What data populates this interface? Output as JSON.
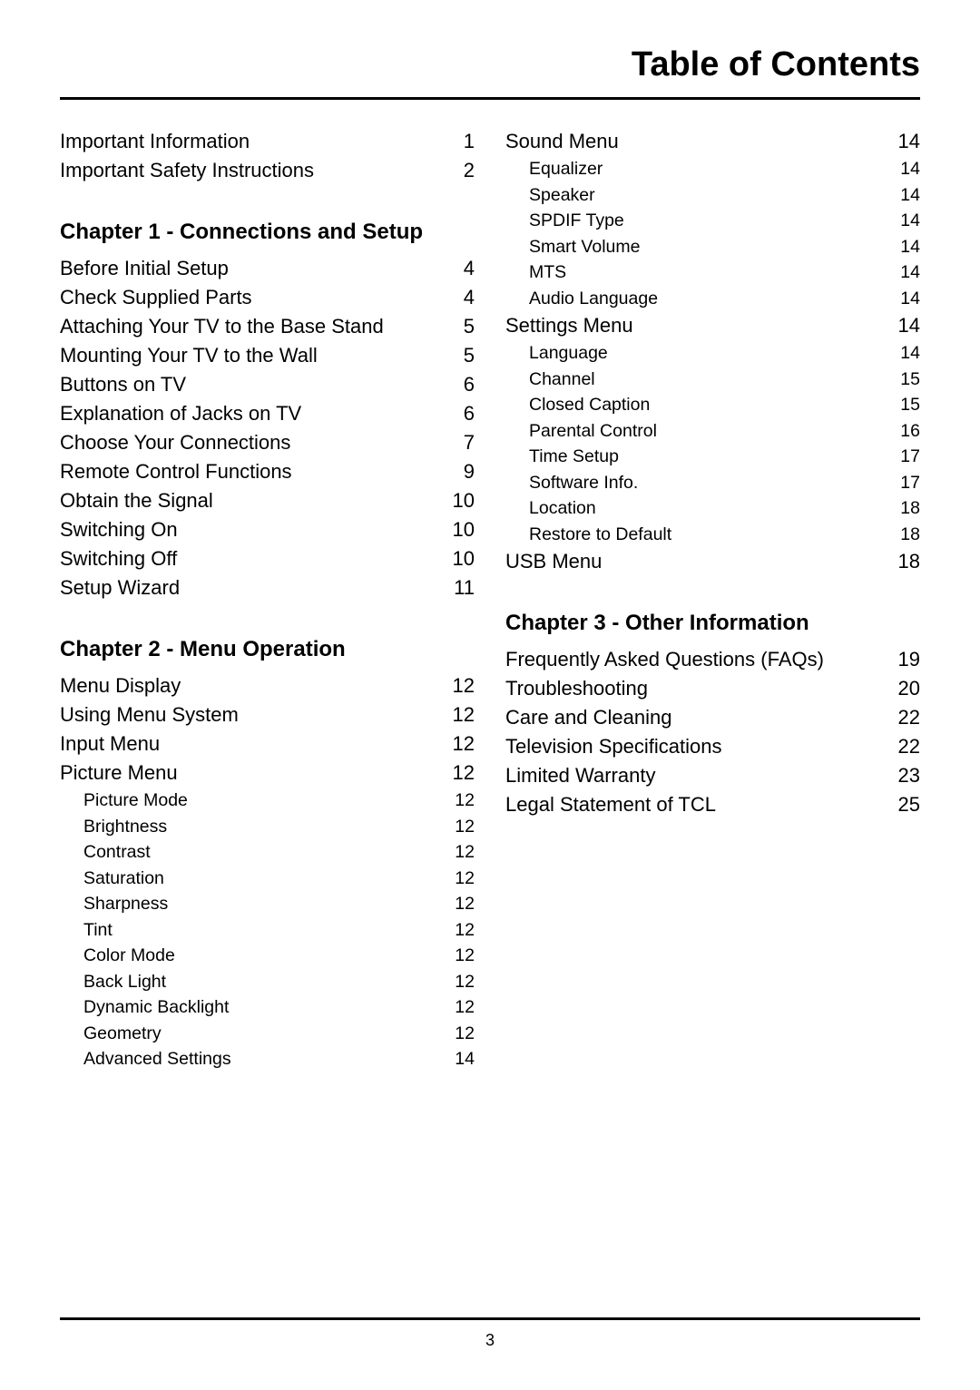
{
  "title": "Table of Contents",
  "page_number": "3",
  "intro": [
    {
      "label": "Important Information",
      "page": "1"
    },
    {
      "label": "Important Safety Instructions",
      "page": "2"
    }
  ],
  "chapter1_heading": "Chapter 1 - Connections and Setup",
  "chapter1": [
    {
      "label": "Before Initial Setup",
      "page": "4"
    },
    {
      "label": "Check Supplied Parts",
      "page": "4"
    },
    {
      "label": "Attaching Your TV to the Base Stand",
      "page": "5"
    },
    {
      "label": "Mounting Your TV to the Wall",
      "page": "5"
    },
    {
      "label": "Buttons on TV",
      "page": "6"
    },
    {
      "label": "Explanation of Jacks on TV",
      "page": "6"
    },
    {
      "label": "Choose Your Connections",
      "page": "7"
    },
    {
      "label": "Remote Control Functions",
      "page": "9"
    },
    {
      "label": "Obtain the Signal",
      "page": "10"
    },
    {
      "label": "Switching On",
      "page": "10"
    },
    {
      "label": "Switching Off",
      "page": "10"
    },
    {
      "label": "Setup Wizard",
      "page": "11"
    }
  ],
  "chapter2_heading": "Chapter 2 - Menu Operation",
  "chapter2_main": [
    {
      "label": "Menu Display",
      "page": "12"
    },
    {
      "label": "Using Menu System",
      "page": "12"
    },
    {
      "label": "Input Menu",
      "page": "12"
    },
    {
      "label": "Picture Menu",
      "page": "12"
    }
  ],
  "chapter2_picture_sub": [
    {
      "label": "Picture Mode",
      "page": "12"
    },
    {
      "label": "Brightness",
      "page": "12"
    },
    {
      "label": "Contrast",
      "page": "12"
    },
    {
      "label": "Saturation",
      "page": "12"
    },
    {
      "label": "Sharpness",
      "page": "12"
    },
    {
      "label": "Tint",
      "page": "12"
    },
    {
      "label": "Color Mode",
      "page": "12"
    },
    {
      "label": "Back Light",
      "page": "12"
    },
    {
      "label": "Dynamic Backlight",
      "page": "12"
    },
    {
      "label": "Geometry",
      "page": "12"
    },
    {
      "label": "Advanced Settings",
      "page": "14"
    }
  ],
  "sound_menu_main": {
    "label": "Sound Menu",
    "page": "14"
  },
  "sound_menu_sub": [
    {
      "label": "Equalizer",
      "page": "14"
    },
    {
      "label": "Speaker",
      "page": "14"
    },
    {
      "label": "SPDIF Type",
      "page": "14"
    },
    {
      "label": "Smart Volume",
      "page": "14"
    },
    {
      "label": "MTS",
      "page": "14"
    },
    {
      "label": "Audio Language",
      "page": "14"
    }
  ],
  "settings_menu_main": {
    "label": "Settings Menu",
    "page": "14"
  },
  "settings_menu_sub": [
    {
      "label": "Language",
      "page": "14"
    },
    {
      "label": "Channel",
      "page": "15"
    },
    {
      "label": "Closed Caption",
      "page": "15"
    },
    {
      "label": "Parental Control",
      "page": "16"
    },
    {
      "label": "Time Setup",
      "page": "17"
    },
    {
      "label": "Software Info.",
      "page": "17"
    },
    {
      "label": "Location",
      "page": "18"
    },
    {
      "label": "Restore to Default",
      "page": "18"
    }
  ],
  "usb_menu": {
    "label": "USB Menu",
    "page": "18"
  },
  "chapter3_heading": "Chapter 3 - Other Information",
  "chapter3": [
    {
      "label": "Frequently Asked Questions (FAQs)",
      "page": "19"
    },
    {
      "label": "Troubleshooting",
      "page": "20"
    },
    {
      "label": "Care and Cleaning",
      "page": "22"
    },
    {
      "label": "Television Specifications",
      "page": "22"
    },
    {
      "label": "Limited Warranty",
      "page": "23"
    },
    {
      "label": "Legal Statement of TCL",
      "page": "25"
    }
  ]
}
